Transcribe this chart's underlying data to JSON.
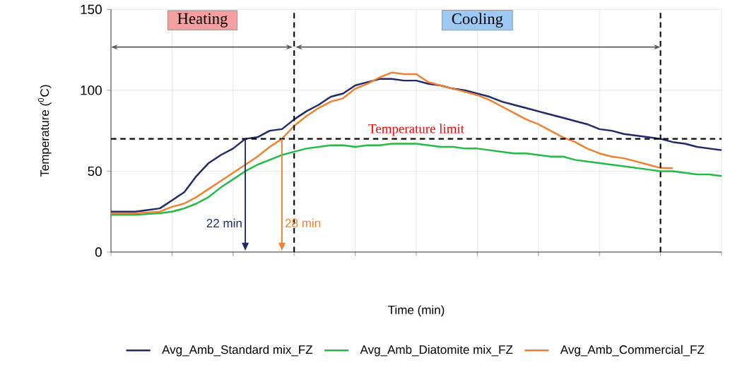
{
  "chart_data": {
    "type": "line",
    "xlabel": "Time (min)",
    "ylabel": "Temperature ($^{0}$C)",
    "categories": [
      null,
      null,
      null,
      null,
      null,
      null,
      null,
      null,
      null,
      null,
      null,
      null,
      null,
      null,
      null,
      null,
      null,
      null,
      null,
      null,
      null,
      null,
      null,
      null,
      null,
      null,
      null,
      null,
      null,
      null,
      null,
      null,
      null,
      null,
      null,
      null,
      null,
      null,
      null,
      null,
      null,
      null,
      null,
      null,
      null,
      null,
      null,
      null,
      null,
      null,
      null
    ],
    "series": [
      {
        "name": "Avg_Amb_Standard mix_FZ",
        "color": "#1f2a6b",
        "values": [
          25,
          25,
          25,
          26,
          27,
          32,
          37,
          47,
          55,
          60,
          64,
          70,
          71,
          75,
          76,
          82,
          87,
          91,
          96,
          98,
          103,
          105,
          107,
          107,
          106,
          106,
          104,
          103,
          101,
          100,
          98,
          96,
          93,
          91,
          89,
          87,
          85,
          83,
          81,
          79,
          76,
          75,
          73,
          72,
          71,
          70,
          68,
          67,
          65,
          64,
          63
        ]
      },
      {
        "name": "Avg_Amb_Diatomite mix_FZ",
        "color": "#22bb44",
        "values": [
          23,
          23,
          23,
          23.5,
          24,
          25,
          27,
          30,
          34,
          40,
          45,
          50,
          54,
          57,
          60,
          62,
          64,
          65,
          66,
          66,
          65,
          66,
          66,
          67,
          67,
          67,
          66,
          65,
          65,
          64,
          64,
          63,
          62,
          61,
          61,
          60,
          59,
          59,
          57,
          56,
          55,
          54,
          53,
          52,
          51,
          50,
          50,
          49,
          48,
          48,
          47
        ]
      },
      {
        "name": "Avg_Amb_Commercial_FZ",
        "color": "#f08030",
        "values": [
          24,
          24,
          24,
          24.5,
          25,
          28,
          30,
          34,
          39,
          44,
          49,
          54,
          59,
          65,
          70,
          78,
          84,
          89,
          93,
          95,
          101,
          104,
          108,
          111,
          110,
          110,
          105,
          103,
          101,
          99,
          97,
          94,
          90,
          86,
          82,
          79,
          75,
          71,
          68,
          64,
          61,
          59,
          58,
          56,
          54,
          52,
          51.8,
          null,
          null,
          null,
          null
        ]
      }
    ],
    "ylim": [
      0,
      150
    ],
    "yticks": [
      0,
      50,
      100,
      150
    ],
    "tick_labels": "y",
    "grid": true,
    "legend": "bottom",
    "line_style": "solid",
    "marker": "none",
    "ref_lines": [
      {
        "axis": "y",
        "value": 70,
        "label": "Temperature limit",
        "color": "#000000",
        "line_style": "dashed"
      }
    ],
    "annotations": [
      "Heating",
      "Cooling",
      "22 min",
      "28 min"
    ]
  }
}
